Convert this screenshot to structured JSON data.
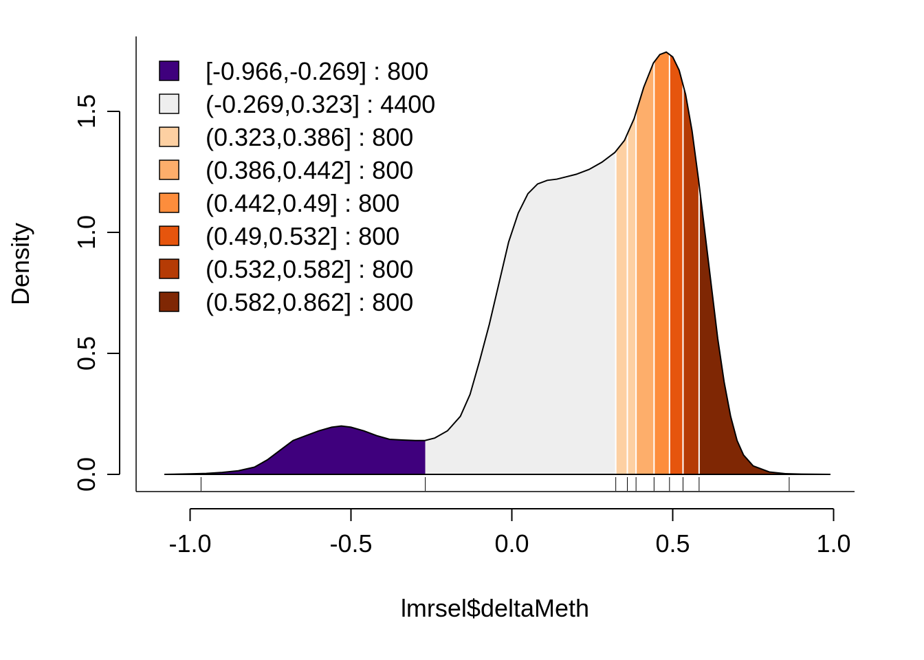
{
  "chart_data": {
    "type": "area",
    "xlabel": "lmrsel$deltaMeth",
    "ylabel": "Density",
    "xlim": [
      -1.15,
      1.1
    ],
    "ylim": [
      0,
      1.8
    ],
    "x_ticks": [
      "-1.0",
      "-0.5",
      "0.0",
      "0.5",
      "1.0"
    ],
    "y_ticks": [
      "0.0",
      "0.5",
      "1.0",
      "1.5"
    ],
    "x_tick_values": [
      -1.0,
      -0.5,
      0.0,
      0.5,
      1.0
    ],
    "y_tick_values": [
      0.0,
      0.5,
      1.0,
      1.5
    ],
    "density_x": [
      -1.08,
      -1.0,
      -0.95,
      -0.9,
      -0.85,
      -0.8,
      -0.76,
      -0.72,
      -0.68,
      -0.64,
      -0.6,
      -0.56,
      -0.53,
      -0.5,
      -0.46,
      -0.42,
      -0.38,
      -0.34,
      -0.3,
      -0.27,
      -0.24,
      -0.2,
      -0.16,
      -0.13,
      -0.1,
      -0.07,
      -0.04,
      -0.01,
      0.02,
      0.05,
      0.08,
      0.11,
      0.14,
      0.17,
      0.2,
      0.24,
      0.28,
      0.32,
      0.35,
      0.38,
      0.41,
      0.44,
      0.46,
      0.48,
      0.5,
      0.52,
      0.54,
      0.56,
      0.58,
      0.6,
      0.62,
      0.64,
      0.66,
      0.68,
      0.7,
      0.72,
      0.75,
      0.8,
      0.85,
      0.9,
      0.99
    ],
    "density_y": [
      0.0,
      0.002,
      0.004,
      0.008,
      0.015,
      0.03,
      0.06,
      0.1,
      0.14,
      0.16,
      0.18,
      0.195,
      0.2,
      0.195,
      0.18,
      0.16,
      0.145,
      0.142,
      0.14,
      0.14,
      0.15,
      0.18,
      0.24,
      0.33,
      0.47,
      0.62,
      0.79,
      0.96,
      1.08,
      1.16,
      1.2,
      1.215,
      1.22,
      1.23,
      1.24,
      1.26,
      1.29,
      1.33,
      1.38,
      1.47,
      1.6,
      1.7,
      1.735,
      1.745,
      1.725,
      1.67,
      1.57,
      1.42,
      1.22,
      1.0,
      0.78,
      0.56,
      0.38,
      0.24,
      0.14,
      0.08,
      0.035,
      0.01,
      0.003,
      0.001,
      0.0
    ],
    "rug_x": [
      -0.966,
      -0.269,
      0.323,
      0.359,
      0.386,
      0.442,
      0.49,
      0.532,
      0.582,
      0.862
    ],
    "bands": [
      {
        "label": "[-0.966,-0.269] : 800",
        "from": -1.08,
        "to": -0.269,
        "color": "#3f007d"
      },
      {
        "label": "(-0.269,0.323] : 4400",
        "from": -0.269,
        "to": 0.323,
        "color": "#eeeeee"
      },
      {
        "label": "(0.323,0.386] : 800",
        "from": 0.323,
        "to": 0.386,
        "color": "#fdd0a2"
      },
      {
        "label": "(0.386,0.442] : 800",
        "from": 0.386,
        "to": 0.442,
        "color": "#fdae6b"
      },
      {
        "label": "(0.442,0.49] : 800",
        "from": 0.442,
        "to": 0.49,
        "color": "#fd8d3c"
      },
      {
        "label": "(0.49,0.532] : 800",
        "from": 0.49,
        "to": 0.532,
        "color": "#e6550d"
      },
      {
        "label": "(0.532,0.582] : 800",
        "from": 0.532,
        "to": 0.582,
        "color": "#b53b05"
      },
      {
        "label": "(0.582,0.862] : 800",
        "from": 0.582,
        "to": 0.99,
        "color": "#7f2704"
      }
    ],
    "band_divider_x": [
      0.359
    ],
    "legend_position": "top-left",
    "grid": false
  }
}
